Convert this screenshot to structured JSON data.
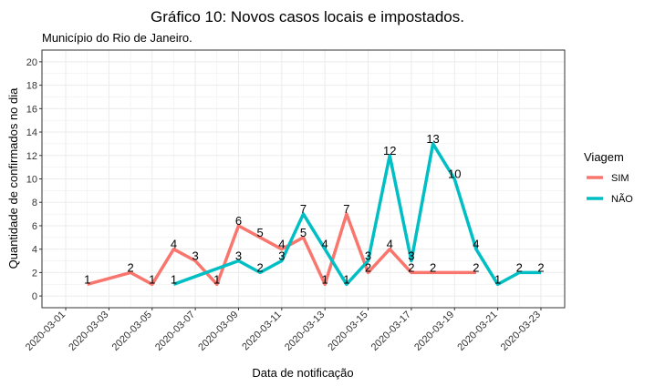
{
  "chart_data": {
    "type": "line",
    "title": "Gráfico 10: Novos casos locais e impostados.",
    "subtitle": "Município do Rio de Janeiro.",
    "xlabel": "Data de notificação",
    "ylabel": "Quantidade de confirmados no dia",
    "ylim": [
      0,
      20
    ],
    "yticks": [
      0,
      2,
      4,
      6,
      8,
      10,
      12,
      14,
      16,
      18,
      20
    ],
    "xrange": [
      "2020-03-01",
      "2020-03-23"
    ],
    "xticks": [
      "2020-03-01",
      "2020-03-03",
      "2020-03-05",
      "2020-03-07",
      "2020-03-09",
      "2020-03-11",
      "2020-03-13",
      "2020-03-15",
      "2020-03-17",
      "2020-03-19",
      "2020-03-21",
      "2020-03-23"
    ],
    "grid": true,
    "legend": {
      "title": "Viagem",
      "position": "right"
    },
    "series": [
      {
        "name": "SIM",
        "color": "#F8766D",
        "points": [
          {
            "x": "2020-03-02",
            "y": 1
          },
          {
            "x": "2020-03-04",
            "y": 2
          },
          {
            "x": "2020-03-05",
            "y": 1
          },
          {
            "x": "2020-03-06",
            "y": 4
          },
          {
            "x": "2020-03-07",
            "y": 3
          },
          {
            "x": "2020-03-08",
            "y": 1
          },
          {
            "x": "2020-03-09",
            "y": 6
          },
          {
            "x": "2020-03-10",
            "y": 5
          },
          {
            "x": "2020-03-11",
            "y": 4
          },
          {
            "x": "2020-03-12",
            "y": 5
          },
          {
            "x": "2020-03-13",
            "y": 1
          },
          {
            "x": "2020-03-14",
            "y": 7
          },
          {
            "x": "2020-03-15",
            "y": 2
          },
          {
            "x": "2020-03-16",
            "y": 4
          },
          {
            "x": "2020-03-17",
            "y": 2
          },
          {
            "x": "2020-03-18",
            "y": 2
          },
          {
            "x": "2020-03-20",
            "y": 2
          }
        ]
      },
      {
        "name": "NÃO",
        "color": "#00BFC4",
        "points": [
          {
            "x": "2020-03-06",
            "y": 1
          },
          {
            "x": "2020-03-09",
            "y": 3
          },
          {
            "x": "2020-03-10",
            "y": 2
          },
          {
            "x": "2020-03-11",
            "y": 3
          },
          {
            "x": "2020-03-12",
            "y": 7
          },
          {
            "x": "2020-03-13",
            "y": 4
          },
          {
            "x": "2020-03-14",
            "y": 1
          },
          {
            "x": "2020-03-15",
            "y": 3
          },
          {
            "x": "2020-03-16",
            "y": 12
          },
          {
            "x": "2020-03-17",
            "y": 3
          },
          {
            "x": "2020-03-18",
            "y": 13
          },
          {
            "x": "2020-03-19",
            "y": 10
          },
          {
            "x": "2020-03-20",
            "y": 4
          },
          {
            "x": "2020-03-21",
            "y": 1
          },
          {
            "x": "2020-03-22",
            "y": 2
          },
          {
            "x": "2020-03-23",
            "y": 2
          }
        ]
      }
    ]
  }
}
